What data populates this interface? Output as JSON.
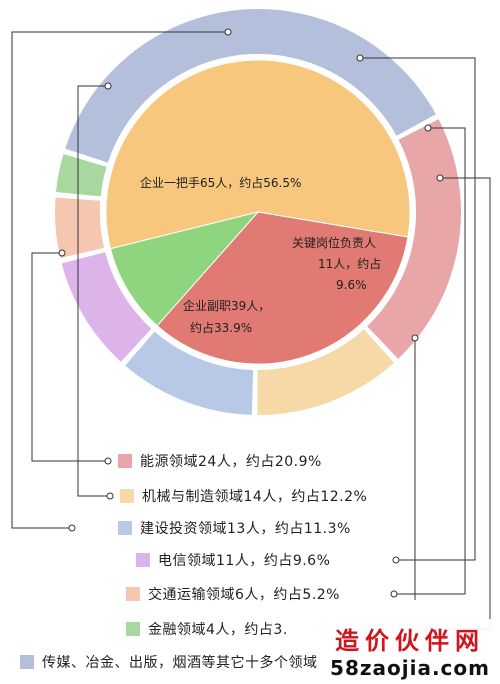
{
  "chart_data": [
    {
      "type": "pie",
      "ring": "inner",
      "slices": [
        {
          "label": "企业一把手65人，约占56.5%",
          "value": 65,
          "percent": 56.5,
          "color": "#f6c77c"
        },
        {
          "label": "企业副职39人，约占33.9%",
          "value": 39,
          "percent": 33.9,
          "color": "#e07a72"
        },
        {
          "label": "关键岗位负责人11人，约占9.6%",
          "value": 11,
          "percent": 9.6,
          "color": "#8fd47e"
        }
      ]
    },
    {
      "type": "pie",
      "ring": "outer",
      "slices": [
        {
          "label": "能源领域24人，约占20.9%",
          "value": 24,
          "percent": 20.9,
          "color": "#e9a6a8"
        },
        {
          "label": "机械与制造领域14人，约占12.2%",
          "value": 14,
          "percent": 12.2,
          "color": "#f6d9a6"
        },
        {
          "label": "建设投资领域13人，约占11.3%",
          "value": 13,
          "percent": 11.3,
          "color": "#b7c9e6"
        },
        {
          "label": "电信领域11人，约占9.6%",
          "value": 11,
          "percent": 9.6,
          "color": "#dcb4ea"
        },
        {
          "label": "交通运输领域6人，约占5.2%",
          "value": 6,
          "percent": 5.2,
          "color": "#f5c6b0"
        },
        {
          "label": "金融领域4人，约占3.",
          "value": 4,
          "percent": 3.5,
          "color": "#a8d8a0"
        },
        {
          "label": "传媒、冶金、出版，烟酒等其它十多个领域",
          "value": 43,
          "percent": 37.3,
          "color": "#b4bfdb"
        }
      ]
    }
  ],
  "inner_labels": {
    "s0_line1": "企业一把手65人，约占56.5%",
    "s1_line1": "企业副职39人，",
    "s1_line2": "约占33.9%",
    "s2_line1": "关键岗位负责人",
    "s2_line2": "11人，约占",
    "s2_line3": "9.6%"
  },
  "legend": [
    {
      "text": "能源领域24人，约占20.9%",
      "color": "#e9a6a8"
    },
    {
      "text": "机械与制造领域14人，约占12.2%",
      "color": "#f6d9a6"
    },
    {
      "text": "建设投资领域13人，约占11.3%",
      "color": "#b7c9e6"
    },
    {
      "text": "电信领域11人，约占9.6%",
      "color": "#dcb4ea"
    },
    {
      "text": "交通运输领域6人，约占5.2%",
      "color": "#f5c6b0"
    },
    {
      "text": "金融领域4人，约占3.",
      "color": "#a8d8a0"
    },
    {
      "text": "传媒、冶金、出版，烟酒等其它十多个领域",
      "color": "#b4bfdb"
    }
  ],
  "watermark": {
    "line1": "造价伙伴网",
    "line2": "58zaojia.com"
  }
}
